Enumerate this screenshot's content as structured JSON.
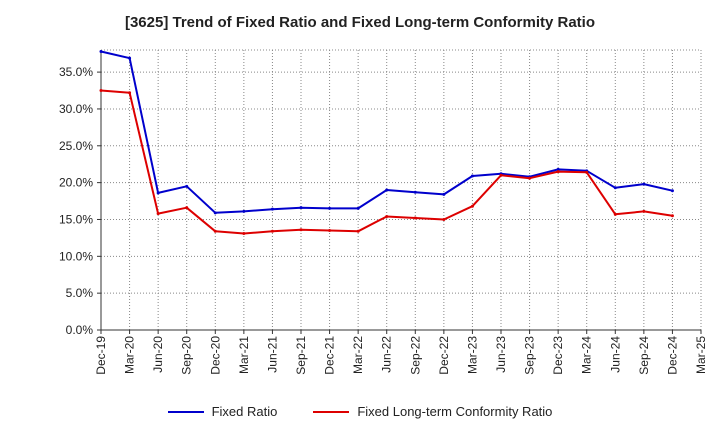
{
  "chart_data": {
    "type": "line",
    "title": "[3625]  Trend of Fixed Ratio and Fixed Long-term Conformity Ratio",
    "categories": [
      "Dec-19",
      "Mar-20",
      "Jun-20",
      "Sep-20",
      "Dec-20",
      "Mar-21",
      "Jun-21",
      "Sep-21",
      "Dec-21",
      "Mar-22",
      "Jun-22",
      "Sep-22",
      "Dec-22",
      "Mar-23",
      "Jun-23",
      "Sep-23",
      "Dec-23",
      "Mar-24",
      "Jun-24",
      "Sep-24",
      "Dec-24",
      "Mar-25"
    ],
    "ylim": [
      0,
      38
    ],
    "yticks": [
      0,
      5,
      10,
      15,
      20,
      25,
      30,
      35
    ],
    "ytick_labels": [
      "0.0%",
      "5.0%",
      "10.0%",
      "15.0%",
      "20.0%",
      "25.0%",
      "30.0%",
      "35.0%"
    ],
    "grid": true,
    "legend_position": "bottom",
    "series": [
      {
        "name": "Fixed Ratio",
        "color": "#0000cc",
        "values": [
          37.8,
          36.9,
          18.6,
          19.5,
          15.9,
          16.1,
          16.4,
          16.6,
          16.5,
          16.5,
          19.0,
          18.7,
          18.4,
          20.9,
          21.2,
          20.8,
          21.8,
          21.6,
          19.3,
          19.8,
          18.9,
          null
        ]
      },
      {
        "name": "Fixed Long-term Conformity Ratio",
        "color": "#dd0000",
        "values": [
          32.5,
          32.2,
          15.8,
          16.6,
          13.4,
          13.1,
          13.4,
          13.6,
          13.5,
          13.4,
          15.4,
          15.2,
          15.0,
          16.8,
          21.0,
          20.6,
          21.5,
          21.4,
          15.7,
          16.1,
          15.5,
          null
        ]
      }
    ]
  }
}
